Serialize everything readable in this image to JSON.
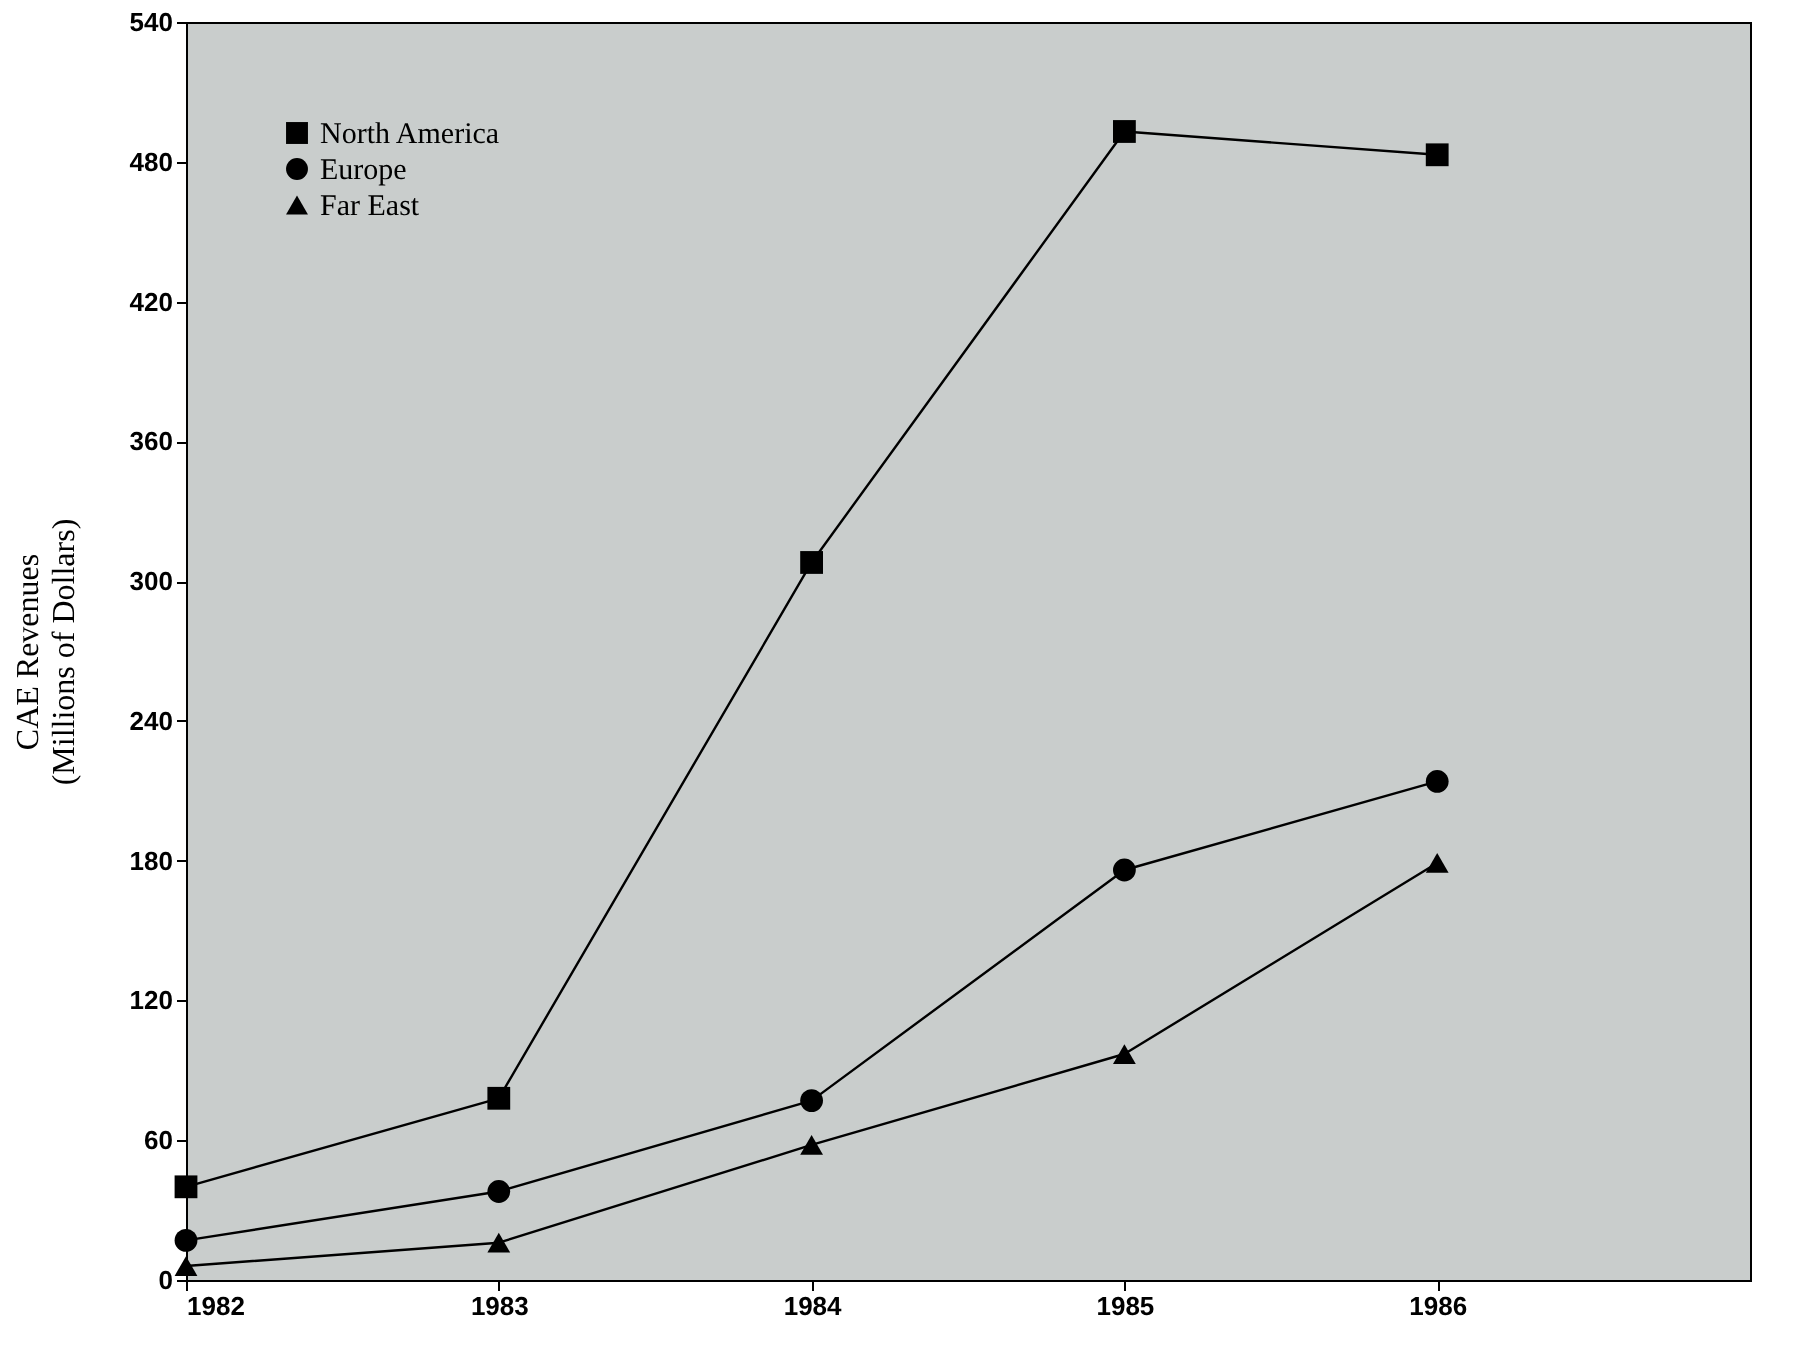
{
  "chart_data": {
    "type": "line",
    "x": [
      1982,
      1983,
      1984,
      1985,
      1986
    ],
    "xlim": [
      1982,
      1987
    ],
    "xticks": [
      1982,
      1983,
      1984,
      1985,
      1986
    ],
    "ylim": [
      0,
      540
    ],
    "yticks": [
      0,
      60,
      120,
      180,
      240,
      300,
      360,
      420,
      480,
      540
    ],
    "ylabel": "CAE Revenues\n(Millions of Dollars)",
    "legend": "top left",
    "grid": false,
    "series": [
      {
        "name": "North America",
        "color": "#000000",
        "marker": "square",
        "values": [
          40,
          78,
          308,
          493,
          483
        ]
      },
      {
        "name": "Europe",
        "color": "#000000",
        "marker": "circle",
        "values": [
          17,
          38,
          77,
          176,
          214
        ]
      },
      {
        "name": "Far East",
        "color": "#000000",
        "marker": "triangle",
        "values": [
          6,
          16,
          58,
          97,
          179
        ]
      }
    ]
  }
}
